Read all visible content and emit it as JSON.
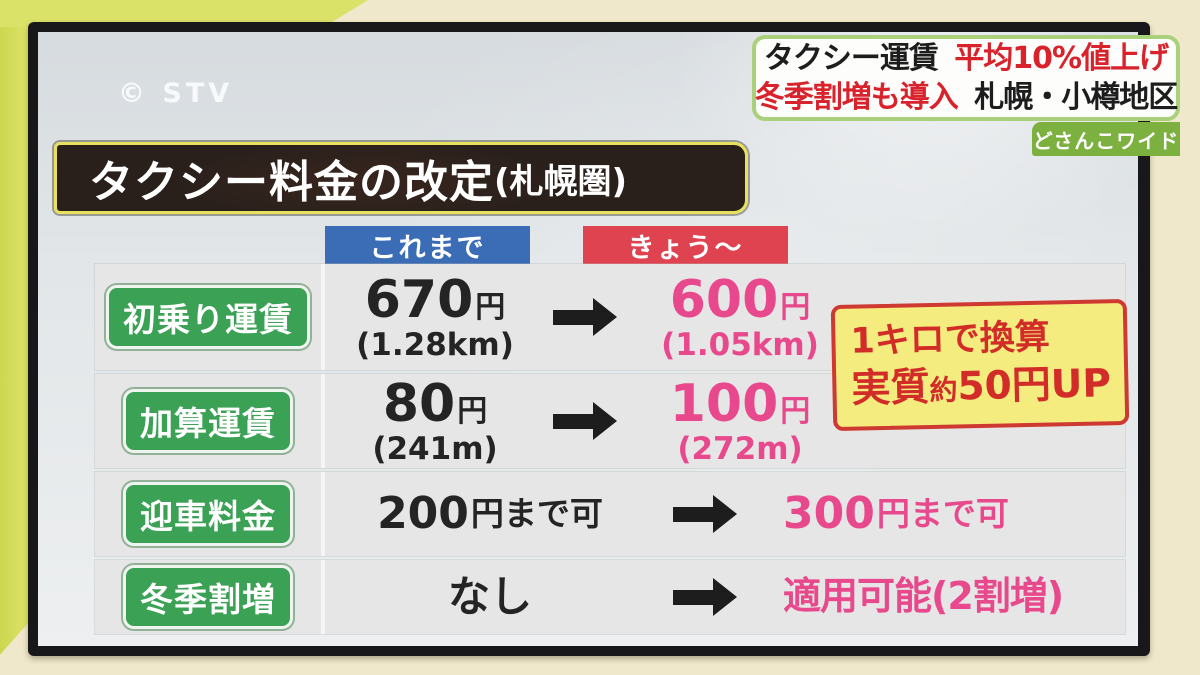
{
  "station": {
    "watermark": "© STV"
  },
  "program": {
    "badge": "どさんこワイド"
  },
  "headline": {
    "line1_black": "タクシー運賃",
    "line1_red": "平均10%値上げ",
    "line2_red": "冬季割増も導入",
    "line2_black": "札幌・小樽地区"
  },
  "board": {
    "title_main": "タクシー料金の改定",
    "title_sub": "(札幌圏)",
    "col_before": "これまで",
    "col_after": "きょう〜",
    "note": {
      "line1": "1キロで換算",
      "line2_pre": "実質",
      "line2_small": "約",
      "line2_post": "50円UP"
    },
    "rows": [
      {
        "label": "初乗り運賃",
        "b_val": "670",
        "b_unit": "円",
        "b_detail": "(1.28km)",
        "a_val": "600",
        "a_unit": "円",
        "a_detail": "(1.05km)"
      },
      {
        "label": "加算運賃",
        "b_val": "80",
        "b_unit": "円",
        "b_detail": "(241m)",
        "a_val": "100",
        "a_unit": "円",
        "a_detail": "(272m)"
      },
      {
        "label": "迎車料金",
        "b_val": "200",
        "b_unit": "円まで可",
        "a_val": "300",
        "a_unit": "円まで可"
      },
      {
        "label": "冬季割増",
        "b_text": "なし",
        "a_text": "適用可能(2割増)"
      }
    ]
  },
  "colors": {
    "frame_green": "#dbe268",
    "frame_cream": "#f0e8ca",
    "before_header_blue": "#3a6db6",
    "after_header_red": "#e04350",
    "highlight_pink": "#e8498c",
    "badge_green": "#3ba155",
    "headline_red": "#d8232d",
    "program_badge_green": "#7cb03f",
    "title_border_yellow": "#e8e15e",
    "note_bg_yellow": "#f4ec7e",
    "note_red": "#d22c28"
  }
}
